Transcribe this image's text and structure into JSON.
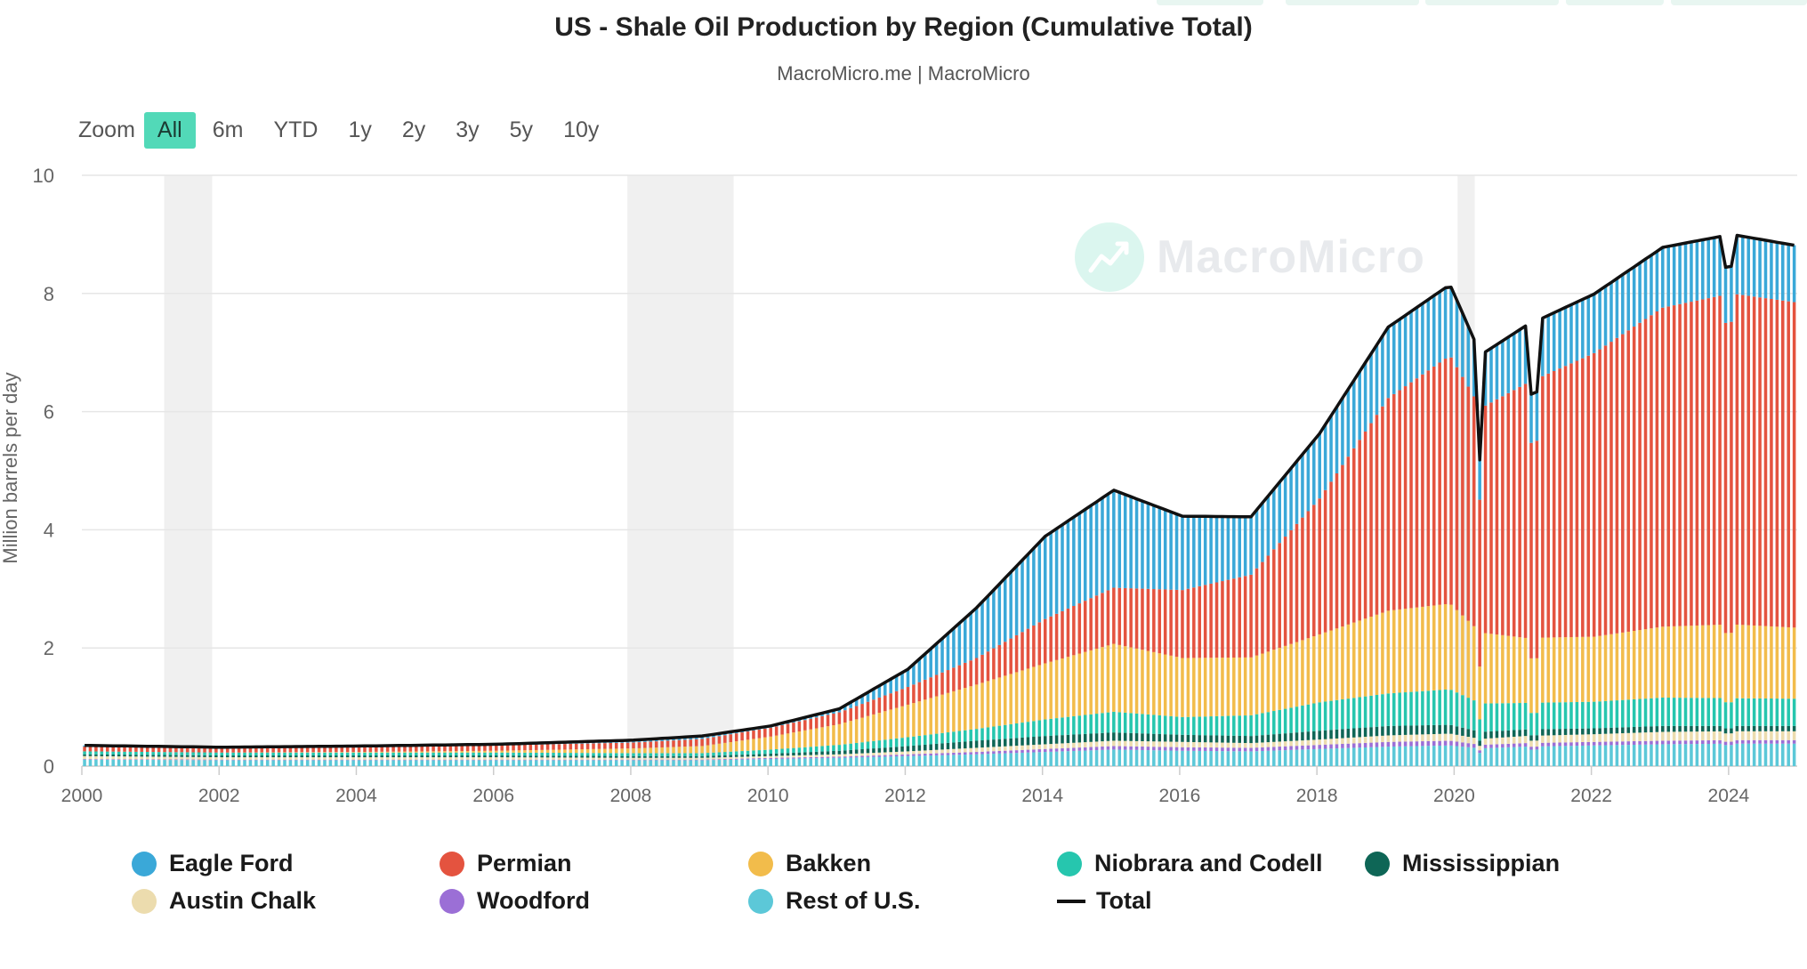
{
  "chart_data": {
    "type": "bar",
    "stacked": true,
    "title": "US - Shale Oil Production by Region (Cumulative Total)",
    "subtitle": "MacroMicro.me | MacroMicro",
    "ylabel": "Million barrels per day",
    "xlim": [
      2000,
      2025
    ],
    "ylim": [
      0,
      10
    ],
    "y_ticks": [
      0,
      2,
      4,
      6,
      8,
      10
    ],
    "x_ticks": [
      "2000",
      "2002",
      "2004",
      "2006",
      "2008",
      "2010",
      "2012",
      "2014",
      "2016",
      "2018",
      "2020",
      "2022",
      "2024"
    ],
    "grid": true,
    "legend_position": "bottom",
    "recession_bands": [
      [
        2001.2,
        2001.9
      ],
      [
        2007.95,
        2009.5
      ],
      [
        2020.05,
        2020.3
      ]
    ],
    "series_colors": {
      "Rest of U.S.": "#5cc8d8",
      "Woodford": "#9b6fd6",
      "Austin Chalk": "#ecdcae",
      "Mississippian": "#0e6656",
      "Niobrara and Codell": "#26c6ae",
      "Bakken": "#f2bc4b",
      "Permian": "#e4533f",
      "Eagle Ford": "#3aa8d8",
      "Total": "#111111"
    },
    "keyframes": {
      "x": [
        2000,
        2002,
        2004,
        2006,
        2008,
        2009,
        2010,
        2011,
        2012,
        2013,
        2014,
        2015,
        2016,
        2017,
        2018,
        2019,
        2019.9,
        2020.35,
        2021,
        2022,
        2023,
        2024,
        2025
      ],
      "series": [
        {
          "name": "Rest of U.S.",
          "values": [
            0.11,
            0.1,
            0.1,
            0.1,
            0.1,
            0.1,
            0.12,
            0.14,
            0.17,
            0.2,
            0.24,
            0.28,
            0.26,
            0.25,
            0.29,
            0.33,
            0.35,
            0.3,
            0.33,
            0.35,
            0.37,
            0.38,
            0.38
          ]
        },
        {
          "name": "Woodford",
          "values": [
            0.01,
            0.01,
            0.01,
            0.01,
            0.01,
            0.01,
            0.02,
            0.02,
            0.03,
            0.04,
            0.05,
            0.06,
            0.06,
            0.06,
            0.07,
            0.08,
            0.08,
            0.06,
            0.06,
            0.06,
            0.06,
            0.06,
            0.06
          ]
        },
        {
          "name": "Austin Chalk",
          "values": [
            0.05,
            0.04,
            0.04,
            0.04,
            0.03,
            0.03,
            0.03,
            0.04,
            0.05,
            0.07,
            0.08,
            0.09,
            0.09,
            0.08,
            0.09,
            0.11,
            0.12,
            0.1,
            0.12,
            0.13,
            0.15,
            0.15,
            0.15
          ]
        },
        {
          "name": "Mississippian",
          "values": [
            0.03,
            0.03,
            0.03,
            0.03,
            0.03,
            0.03,
            0.04,
            0.06,
            0.09,
            0.12,
            0.14,
            0.14,
            0.12,
            0.12,
            0.15,
            0.16,
            0.15,
            0.12,
            0.11,
            0.1,
            0.1,
            0.09,
            0.09
          ]
        },
        {
          "name": "Niobrara and Codell",
          "values": [
            0.05,
            0.05,
            0.05,
            0.05,
            0.05,
            0.05,
            0.07,
            0.1,
            0.15,
            0.2,
            0.28,
            0.35,
            0.3,
            0.35,
            0.48,
            0.55,
            0.6,
            0.48,
            0.45,
            0.45,
            0.48,
            0.47,
            0.46
          ]
        },
        {
          "name": "Bakken",
          "values": [
            0.0,
            0.0,
            0.01,
            0.03,
            0.08,
            0.12,
            0.22,
            0.35,
            0.55,
            0.75,
            0.95,
            1.15,
            1.0,
            0.98,
            1.15,
            1.4,
            1.45,
            1.2,
            1.1,
            1.1,
            1.2,
            1.25,
            1.2
          ]
        },
        {
          "name": "Permian",
          "values": [
            0.08,
            0.07,
            0.08,
            0.09,
            0.1,
            0.12,
            0.15,
            0.2,
            0.3,
            0.45,
            0.75,
            0.95,
            1.15,
            1.4,
            2.3,
            3.6,
            4.2,
            3.8,
            4.3,
            4.8,
            5.4,
            5.6,
            5.5
          ]
        },
        {
          "name": "Eagle Ford",
          "values": [
            0.02,
            0.02,
            0.02,
            0.02,
            0.04,
            0.05,
            0.03,
            0.06,
            0.3,
            0.85,
            1.4,
            1.65,
            1.25,
            0.98,
            1.1,
            1.2,
            1.2,
            0.9,
            0.98,
            1.0,
            1.02,
            1.0,
            0.96
          ]
        }
      ]
    },
    "dips": [
      {
        "x": 2020.33,
        "factor": 0.74
      },
      {
        "x": 2021.12,
        "factor": 0.84
      },
      {
        "x": 2023.95,
        "factor": 0.94
      }
    ],
    "total_label": "Total"
  },
  "zoom": {
    "label": "Zoom",
    "buttons": [
      "All",
      "6m",
      "YTD",
      "1y",
      "2y",
      "3y",
      "5y",
      "10y"
    ],
    "selected": "All"
  },
  "legend": {
    "row1": [
      "Eagle Ford",
      "Permian",
      "Bakken",
      "Niobrara and Codell",
      "Mississippian"
    ],
    "row2": [
      "Austin Chalk",
      "Woodford",
      "Rest of U.S.",
      "Total"
    ]
  },
  "watermark": "MacroMicro"
}
